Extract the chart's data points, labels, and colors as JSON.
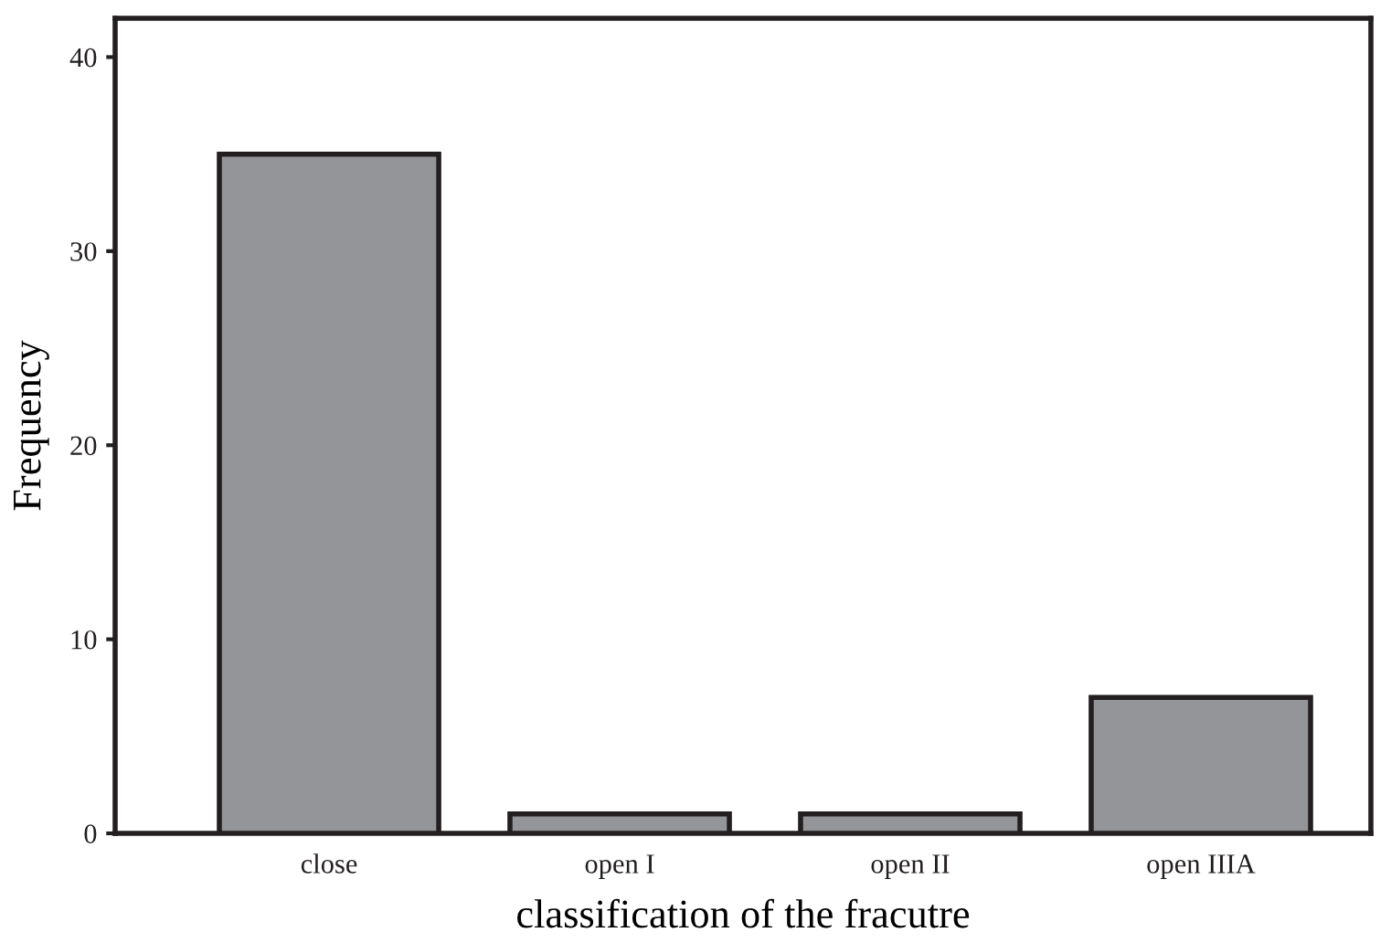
{
  "chart_data": {
    "type": "bar",
    "xlabel": "classification of the fracutre",
    "ylabel": "Frequency",
    "categories": [
      "close",
      "open I",
      "open II",
      "open IIIA"
    ],
    "values": [
      35,
      1,
      1,
      7
    ],
    "color": "#939598",
    "ylim": [
      0,
      42
    ],
    "yticks": [
      0,
      10,
      20,
      30,
      40
    ],
    "grid": false,
    "legend": false
  }
}
